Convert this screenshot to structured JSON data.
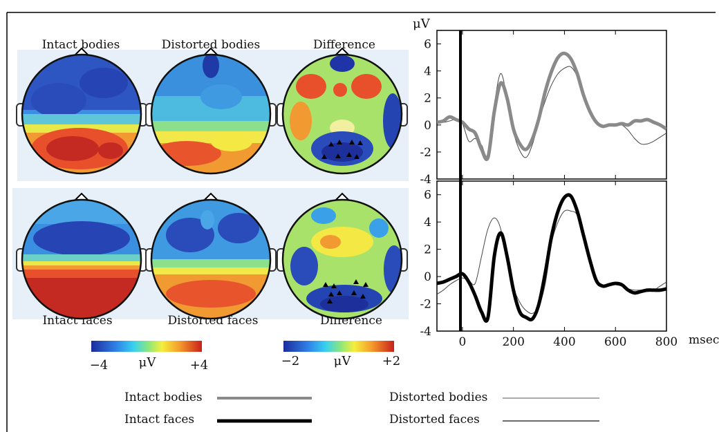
{
  "maps": {
    "top_titles": [
      "Intact bodies",
      "Distorted bodies",
      "Difference"
    ],
    "bottom_titles": [
      "Intact faces",
      "Distorted faces",
      "Difference"
    ],
    "colorbar_left": {
      "min": "−4",
      "unit": "μV",
      "max": "+4"
    },
    "colorbar_right": {
      "min": "−2",
      "unit": "μV",
      "max": "+2"
    }
  },
  "legend": {
    "intact_bodies": "Intact bodies",
    "intact_faces": "Intact faces",
    "distorted_bodies": "Distorted bodies",
    "distorted_faces": "Distorted faces"
  },
  "colors": {
    "bodies": "#8a8a8a",
    "faces": "#000000",
    "distorted": "#444444"
  },
  "chart_data": [
    {
      "type": "line",
      "ylabel": "μV",
      "xlim": [
        -100,
        800
      ],
      "ylim": [
        -4,
        7
      ],
      "yticks": [
        -4,
        -2,
        0,
        2,
        4,
        6
      ],
      "x": [
        -100,
        -75,
        -50,
        -25,
        0,
        25,
        50,
        75,
        100,
        125,
        150,
        175,
        200,
        225,
        250,
        275,
        300,
        325,
        350,
        375,
        400,
        425,
        450,
        475,
        500,
        525,
        550,
        575,
        600,
        625,
        650,
        675,
        700,
        725,
        750,
        775,
        800
      ],
      "series": [
        {
          "name": "Intact bodies",
          "values": [
            0.2,
            0.3,
            0.6,
            0.4,
            0.2,
            -0.3,
            -0.6,
            -1.8,
            -2.4,
            1.0,
            3.1,
            2.0,
            -0.3,
            -1.4,
            -1.8,
            -1.0,
            0.5,
            2.5,
            4.0,
            5.0,
            5.3,
            4.9,
            3.8,
            2.2,
            1.0,
            0.2,
            -0.1,
            0.0,
            0.0,
            0.1,
            0.0,
            0.3,
            0.3,
            0.4,
            0.2,
            0.0,
            -0.3
          ]
        },
        {
          "name": "Distorted bodies",
          "values": [
            0.3,
            0.2,
            0.3,
            0.4,
            0.1,
            -1.2,
            -1.0,
            -1.5,
            -2.2,
            1.5,
            3.8,
            2.0,
            -0.5,
            -1.9,
            -2.4,
            -1.4,
            0.3,
            1.8,
            3.0,
            3.8,
            4.2,
            4.3,
            3.6,
            2.3,
            1.2,
            0.3,
            -0.1,
            0.0,
            0.0,
            0.0,
            -0.4,
            -1.0,
            -1.4,
            -1.4,
            -1.2,
            -0.9,
            -0.6
          ]
        }
      ]
    },
    {
      "type": "line",
      "xlabel": "msec",
      "xlim": [
        -100,
        800
      ],
      "ylim": [
        -4,
        7
      ],
      "xticks": [
        0,
        200,
        400,
        600,
        800
      ],
      "yticks": [
        -4,
        -2,
        0,
        2,
        4,
        6
      ],
      "x": [
        -100,
        -75,
        -50,
        -25,
        0,
        25,
        50,
        75,
        100,
        125,
        150,
        175,
        200,
        225,
        250,
        275,
        300,
        325,
        350,
        375,
        400,
        425,
        450,
        475,
        500,
        525,
        550,
        575,
        600,
        625,
        650,
        675,
        700,
        725,
        750,
        775,
        800
      ],
      "series": [
        {
          "name": "Intact faces",
          "values": [
            -0.5,
            -0.4,
            -0.2,
            0.0,
            0.2,
            -0.4,
            -1.4,
            -2.6,
            -3.0,
            1.5,
            3.2,
            1.5,
            -1.0,
            -2.6,
            -3.0,
            -3.1,
            -2.0,
            0.3,
            3.0,
            4.8,
            5.8,
            5.9,
            4.8,
            3.0,
            1.2,
            -0.3,
            -0.7,
            -0.6,
            -0.5,
            -0.6,
            -1.0,
            -1.2,
            -1.1,
            -1.0,
            -1.0,
            -1.0,
            -0.9
          ]
        },
        {
          "name": "Distorted faces",
          "values": [
            -1.3,
            -1.0,
            -0.6,
            -0.3,
            -0.1,
            -0.3,
            -0.5,
            1.5,
            3.5,
            4.3,
            3.5,
            1.0,
            -0.8,
            -1.9,
            -2.5,
            -2.7,
            -2.2,
            -0.5,
            2.5,
            4.0,
            4.8,
            4.8,
            4.5,
            2.8,
            1.0,
            -0.2,
            -0.6,
            -0.6,
            -0.6,
            -0.7,
            -0.9,
            -1.0,
            -1.0,
            -1.1,
            -1.0,
            -0.7,
            -0.4
          ]
        }
      ]
    }
  ]
}
